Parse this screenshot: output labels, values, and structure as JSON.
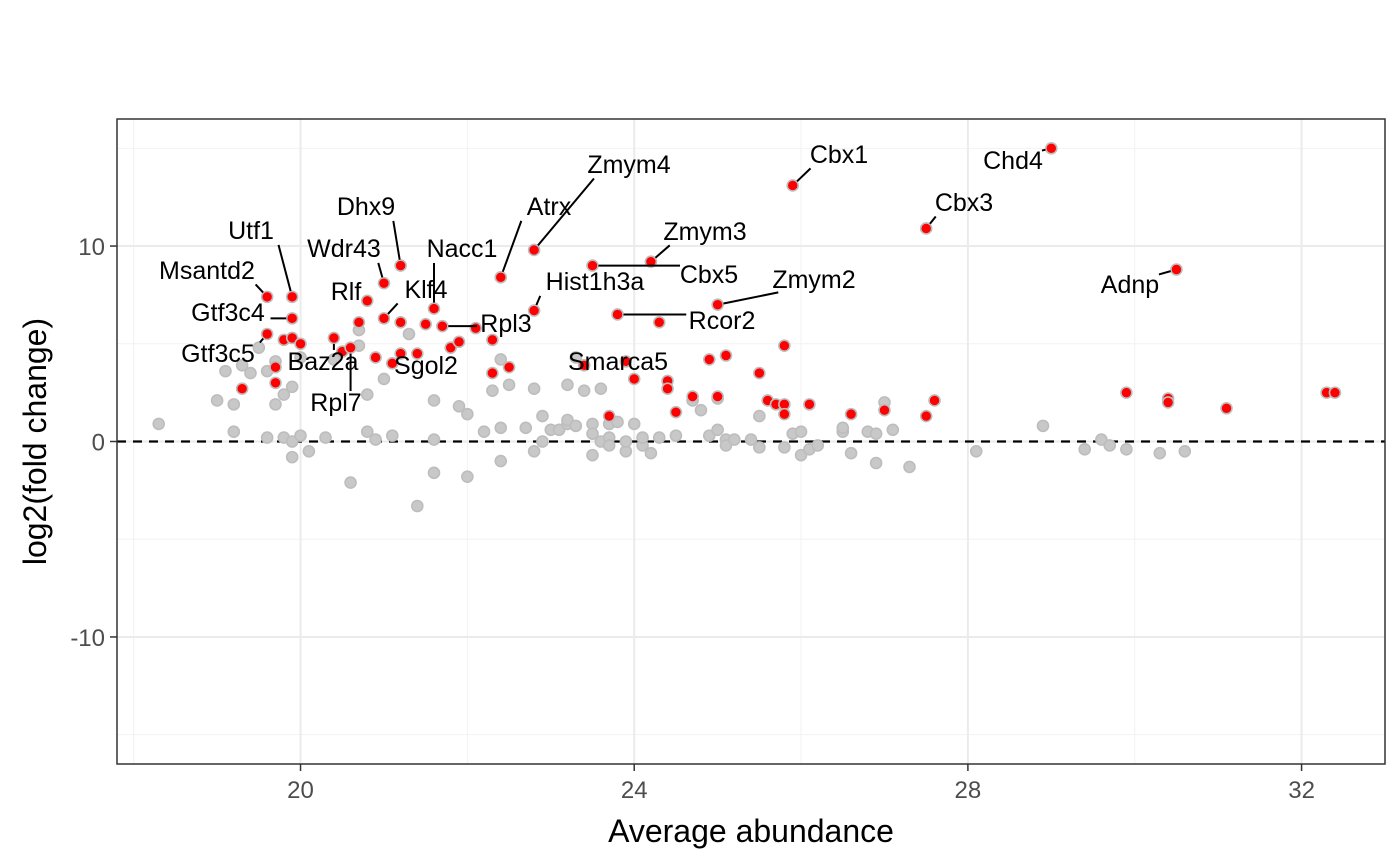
{
  "chart_data": {
    "type": "scatter",
    "xlabel": "Average abundance",
    "ylabel": "log2(fold change)",
    "xlim": [
      17.8,
      33.0
    ],
    "ylim": [
      -16.5,
      16.5
    ],
    "x_ticks": [
      20,
      24,
      28,
      32
    ],
    "y_ticks": [
      -10,
      0,
      10
    ],
    "x_tick_labels": [
      "20",
      "24",
      "28",
      "32"
    ],
    "y_tick_labels": [
      "-10",
      "0",
      "10"
    ],
    "grid": true,
    "reference_line": {
      "y": 0,
      "style": "dashed"
    },
    "colors": {
      "significant": "#ff0000",
      "not_significant": "#c8c8c8",
      "point_stroke": "#bdbdbd"
    },
    "series": [
      {
        "points": [
          [
            18.3,
            0.9
          ],
          [
            19.0,
            2.1
          ],
          [
            19.1,
            3.6
          ],
          [
            19.2,
            0.5
          ],
          [
            19.2,
            1.9
          ],
          [
            19.3,
            3.9
          ],
          [
            19.4,
            3.5
          ],
          [
            19.5,
            4.8
          ],
          [
            19.6,
            3.6
          ],
          [
            19.6,
            0.2
          ],
          [
            19.7,
            1.9
          ],
          [
            19.7,
            4.1
          ],
          [
            19.8,
            2.4
          ],
          [
            19.8,
            0.2
          ],
          [
            19.9,
            -0.8
          ],
          [
            19.9,
            0.0
          ],
          [
            19.9,
            2.8
          ],
          [
            20.0,
            0.3
          ],
          [
            20.0,
            4.3
          ],
          [
            20.1,
            -0.5
          ],
          [
            20.3,
            0.2
          ],
          [
            20.4,
            4.2
          ],
          [
            20.6,
            -2.1
          ],
          [
            20.7,
            4.9
          ],
          [
            20.7,
            5.7
          ],
          [
            20.8,
            2.4
          ],
          [
            20.8,
            0.5
          ],
          [
            20.9,
            0.1
          ],
          [
            21.0,
            3.2
          ],
          [
            21.1,
            0.3
          ],
          [
            21.3,
            5.5
          ],
          [
            21.6,
            2.1
          ],
          [
            21.6,
            0.1
          ],
          [
            21.6,
            -1.6
          ],
          [
            21.4,
            -3.3
          ],
          [
            21.9,
            1.8
          ],
          [
            22.0,
            1.4
          ],
          [
            22.0,
            -1.8
          ],
          [
            22.2,
            0.5
          ],
          [
            22.3,
            2.6
          ],
          [
            22.4,
            4.2
          ],
          [
            22.4,
            0.7
          ],
          [
            22.4,
            -1.0
          ],
          [
            22.5,
            2.9
          ],
          [
            22.7,
            0.7
          ],
          [
            22.8,
            -0.5
          ],
          [
            22.8,
            2.7
          ],
          [
            22.9,
            1.3
          ],
          [
            22.9,
            0.0
          ],
          [
            23.0,
            0.6
          ],
          [
            23.1,
            0.6
          ],
          [
            23.2,
            0.9
          ],
          [
            23.2,
            1.1
          ],
          [
            23.2,
            2.9
          ],
          [
            23.3,
            4.3
          ],
          [
            23.3,
            0.8
          ],
          [
            23.4,
            2.6
          ],
          [
            23.5,
            0.9
          ],
          [
            23.5,
            -0.7
          ],
          [
            23.5,
            0.4
          ],
          [
            23.6,
            2.7
          ],
          [
            23.6,
            0.0
          ],
          [
            23.7,
            0.2
          ],
          [
            23.7,
            0.9
          ],
          [
            23.7,
            -0.2
          ],
          [
            23.8,
            1.0
          ],
          [
            23.9,
            -0.5
          ],
          [
            23.9,
            0.0
          ],
          [
            24.0,
            0.9
          ],
          [
            24.1,
            -0.2
          ],
          [
            24.1,
            0.2
          ],
          [
            24.2,
            -0.6
          ],
          [
            24.3,
            0.2
          ],
          [
            24.5,
            0.3
          ],
          [
            24.7,
            2.1
          ],
          [
            24.8,
            1.6
          ],
          [
            24.9,
            0.3
          ],
          [
            25.0,
            2.2
          ],
          [
            25.0,
            0.6
          ],
          [
            25.1,
            0.1
          ],
          [
            25.1,
            -0.2
          ],
          [
            25.2,
            0.1
          ],
          [
            25.4,
            0.1
          ],
          [
            25.5,
            1.3
          ],
          [
            25.5,
            -0.3
          ],
          [
            25.8,
            -0.3
          ],
          [
            25.9,
            0.4
          ],
          [
            26.0,
            -0.7
          ],
          [
            26.0,
            0.5
          ],
          [
            26.1,
            -0.4
          ],
          [
            26.2,
            -0.2
          ],
          [
            26.5,
            0.5
          ],
          [
            26.5,
            0.7
          ],
          [
            26.6,
            -0.6
          ],
          [
            26.8,
            0.5
          ],
          [
            26.9,
            0.4
          ],
          [
            26.9,
            -1.1
          ],
          [
            27.0,
            2.0
          ],
          [
            27.1,
            0.6
          ],
          [
            27.3,
            -1.3
          ],
          [
            28.1,
            -0.5
          ],
          [
            28.9,
            0.8
          ],
          [
            29.4,
            -0.4
          ],
          [
            29.6,
            0.1
          ],
          [
            29.7,
            -0.2
          ],
          [
            29.9,
            -0.4
          ],
          [
            30.3,
            -0.6
          ],
          [
            30.6,
            -0.5
          ]
        ],
        "significant": false
      },
      {
        "points": [
          [
            29.0,
            15.0
          ],
          [
            25.9,
            13.1
          ],
          [
            27.5,
            10.9
          ],
          [
            22.8,
            9.8
          ],
          [
            24.2,
            9.2
          ],
          [
            21.2,
            9.0
          ],
          [
            30.5,
            8.8
          ],
          [
            22.4,
            8.4
          ],
          [
            21.0,
            8.1
          ],
          [
            23.5,
            9.0
          ],
          [
            19.9,
            7.4
          ],
          [
            19.6,
            7.4
          ],
          [
            20.8,
            7.2
          ],
          [
            25.0,
            7.0
          ],
          [
            21.6,
            6.8
          ],
          [
            22.8,
            6.7
          ],
          [
            23.8,
            6.5
          ],
          [
            24.3,
            6.1
          ],
          [
            19.9,
            6.3
          ],
          [
            21.0,
            6.3
          ],
          [
            20.7,
            6.1
          ],
          [
            21.2,
            6.1
          ],
          [
            21.5,
            6.0
          ],
          [
            21.7,
            5.9
          ],
          [
            22.1,
            5.8
          ],
          [
            22.3,
            5.2
          ],
          [
            21.8,
            4.8
          ],
          [
            21.9,
            5.1
          ],
          [
            19.6,
            5.5
          ],
          [
            19.8,
            5.2
          ],
          [
            19.9,
            5.3
          ],
          [
            20.0,
            5.0
          ],
          [
            20.4,
            5.3
          ],
          [
            20.5,
            4.6
          ],
          [
            20.6,
            4.8
          ],
          [
            21.2,
            4.5
          ],
          [
            21.4,
            4.5
          ],
          [
            21.1,
            4.0
          ],
          [
            20.9,
            4.3
          ],
          [
            19.7,
            3.8
          ],
          [
            19.7,
            3.0
          ],
          [
            19.3,
            2.7
          ],
          [
            22.3,
            3.5
          ],
          [
            22.5,
            3.8
          ],
          [
            23.4,
            3.9
          ],
          [
            23.9,
            4.1
          ],
          [
            24.0,
            3.2
          ],
          [
            24.9,
            4.2
          ],
          [
            25.1,
            4.4
          ],
          [
            25.8,
            4.9
          ],
          [
            25.5,
            3.5
          ],
          [
            24.4,
            3.1
          ],
          [
            24.4,
            2.7
          ],
          [
            24.7,
            2.3
          ],
          [
            25.0,
            2.3
          ],
          [
            24.5,
            1.5
          ],
          [
            25.6,
            2.1
          ],
          [
            25.7,
            1.9
          ],
          [
            25.8,
            1.9
          ],
          [
            25.8,
            1.4
          ],
          [
            26.1,
            1.9
          ],
          [
            26.6,
            1.4
          ],
          [
            27.0,
            1.6
          ],
          [
            27.5,
            1.3
          ],
          [
            27.6,
            2.1
          ],
          [
            23.7,
            1.3
          ],
          [
            29.9,
            2.5
          ],
          [
            30.4,
            2.2
          ],
          [
            30.4,
            2.0
          ],
          [
            31.1,
            1.7
          ],
          [
            32.3,
            2.5
          ],
          [
            32.4,
            2.5
          ]
        ],
        "significant": true
      }
    ],
    "labels": [
      {
        "text": "Chd4",
        "point": [
          29.0,
          15.0
        ]
      },
      {
        "text": "Cbx1",
        "point": [
          25.9,
          13.1
        ]
      },
      {
        "text": "Cbx3",
        "point": [
          27.5,
          10.9
        ]
      },
      {
        "text": "Zmym4",
        "point": [
          22.8,
          9.8
        ]
      },
      {
        "text": "Atrx",
        "point": [
          22.4,
          8.4
        ]
      },
      {
        "text": "Dhx9",
        "point": [
          21.2,
          9.0
        ]
      },
      {
        "text": "Zmym3",
        "point": [
          24.2,
          9.2
        ]
      },
      {
        "text": "Utf1",
        "point": [
          19.9,
          7.4
        ]
      },
      {
        "text": "Wdr43",
        "point": [
          21.0,
          8.1
        ]
      },
      {
        "text": "Nacc1",
        "point": [
          21.6,
          6.8
        ]
      },
      {
        "text": "Adnp",
        "point": [
          30.5,
          8.8
        ]
      },
      {
        "text": "Cbx5",
        "point": [
          23.5,
          9.0
        ]
      },
      {
        "text": "Zmym2",
        "point": [
          25.0,
          7.0
        ]
      },
      {
        "text": "Msantd2",
        "point": [
          19.6,
          7.4
        ]
      },
      {
        "text": "Hist1h3a",
        "point": [
          22.8,
          6.7
        ]
      },
      {
        "text": "Rlf",
        "point": [
          20.8,
          7.2
        ]
      },
      {
        "text": "Klf4",
        "point": [
          21.0,
          6.3
        ]
      },
      {
        "text": "Gtf3c4",
        "point": [
          19.9,
          6.3
        ]
      },
      {
        "text": "Rcor2",
        "point": [
          23.8,
          6.5
        ]
      },
      {
        "text": "Rpl3",
        "point": [
          21.7,
          5.9
        ]
      },
      {
        "text": "Gtf3c5",
        "point": [
          19.6,
          5.5
        ]
      },
      {
        "text": "Baz2a",
        "point": [
          20.4,
          5.3
        ]
      },
      {
        "text": "Sgol2",
        "point": [
          21.2,
          4.5
        ]
      },
      {
        "text": "Smarca5",
        "point": [
          23.9,
          4.1
        ]
      },
      {
        "text": "Rpl7",
        "point": [
          20.6,
          4.8
        ]
      }
    ]
  }
}
